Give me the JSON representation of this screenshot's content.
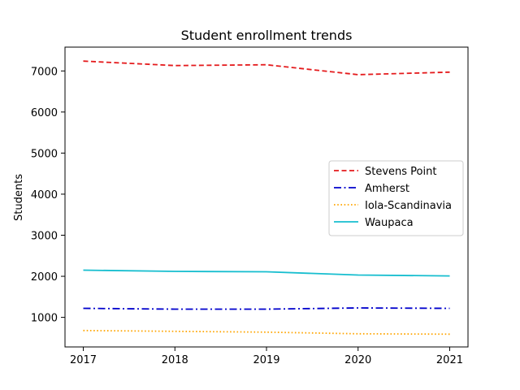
{
  "chart_data": {
    "type": "line",
    "title": "Student enrollment trends",
    "xlabel": "",
    "ylabel": "Students",
    "x": [
      "2017",
      "2018",
      "2019",
      "2020",
      "2021"
    ],
    "xlim": [
      2016.8,
      2021.2
    ],
    "ylim": [
      280,
      7580
    ],
    "yticks": [
      1000,
      2000,
      3000,
      4000,
      5000,
      6000,
      7000
    ],
    "grid": false,
    "legend_position": "center-right",
    "series": [
      {
        "name": "Stevens Point",
        "values": [
          7240,
          7130,
          7150,
          6910,
          6970
        ],
        "color": "#e41a1c",
        "style": "dashed"
      },
      {
        "name": "Amherst",
        "values": [
          1220,
          1200,
          1200,
          1230,
          1220
        ],
        "color": "#0000cc",
        "style": "dashdot"
      },
      {
        "name": "Iola-Scandinavia",
        "values": [
          680,
          660,
          640,
          600,
          590
        ],
        "color": "#ffa500",
        "style": "dotted"
      },
      {
        "name": "Waupaca",
        "values": [
          2150,
          2120,
          2110,
          2030,
          2010
        ],
        "color": "#17becf",
        "style": "solid"
      }
    ]
  }
}
